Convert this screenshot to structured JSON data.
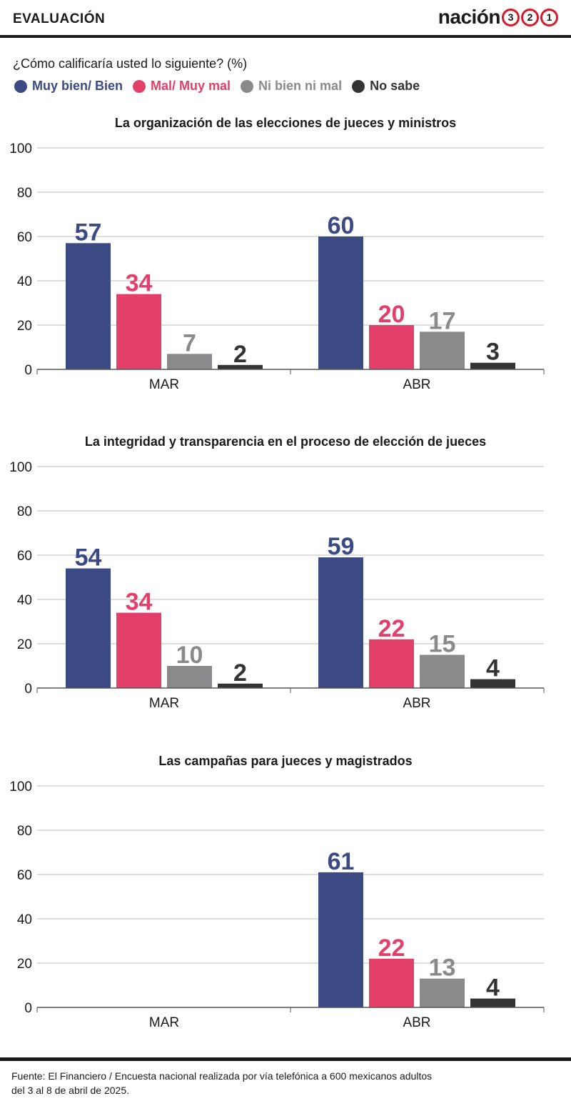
{
  "header": {
    "section": "EVALUACIÓN",
    "brand_word": "nación",
    "brand_digits": [
      "3",
      "2",
      "1"
    ]
  },
  "question": "¿Cómo calificaría usted lo siguiente? (%)",
  "legend": [
    {
      "label": "Muy bien/ Bien",
      "color": "#3b4a83"
    },
    {
      "label": "Mal/ Muy mal",
      "color": "#e2406a"
    },
    {
      "label": "Ni bien ni mal",
      "color": "#8a8a8d"
    },
    {
      "label": "No sabe",
      "color": "#333333"
    }
  ],
  "chart_data": [
    {
      "type": "bar",
      "title": "La organización de las elecciones de jueces y ministros",
      "categories": [
        "MAR",
        "ABR"
      ],
      "series": [
        {
          "name": "Muy bien/ Bien",
          "values": [
            57,
            60
          ]
        },
        {
          "name": "Mal/ Muy mal",
          "values": [
            34,
            20
          ]
        },
        {
          "name": "Ni bien ni mal",
          "values": [
            7,
            17
          ]
        },
        {
          "name": "No sabe",
          "values": [
            2,
            3
          ]
        }
      ],
      "ylim": [
        0,
        100
      ],
      "yticks": [
        0,
        20,
        40,
        60,
        80,
        100
      ],
      "grid": true
    },
    {
      "type": "bar",
      "title": "La integridad y transparencia en el proceso de elección de jueces",
      "categories": [
        "MAR",
        "ABR"
      ],
      "series": [
        {
          "name": "Muy bien/ Bien",
          "values": [
            54,
            59
          ]
        },
        {
          "name": "Mal/ Muy mal",
          "values": [
            34,
            22
          ]
        },
        {
          "name": "Ni bien ni mal",
          "values": [
            10,
            15
          ]
        },
        {
          "name": "No sabe",
          "values": [
            2,
            4
          ]
        }
      ],
      "ylim": [
        0,
        100
      ],
      "yticks": [
        0,
        20,
        40,
        60,
        80,
        100
      ],
      "grid": true
    },
    {
      "type": "bar",
      "title": "Las campañas para jueces y magistrados",
      "categories": [
        "MAR",
        "ABR"
      ],
      "series": [
        {
          "name": "Muy bien/ Bien",
          "values": [
            null,
            61
          ]
        },
        {
          "name": "Mal/ Muy mal",
          "values": [
            null,
            22
          ]
        },
        {
          "name": "Ni bien ni mal",
          "values": [
            null,
            13
          ]
        },
        {
          "name": "No sabe",
          "values": [
            null,
            4
          ]
        }
      ],
      "ylim": [
        0,
        100
      ],
      "yticks": [
        0,
        20,
        40,
        60,
        80,
        100
      ],
      "grid": true
    }
  ],
  "footer": {
    "line1": "Fuente: El Financiero / Encuesta nacional realizada por vía telefónica a 600 mexicanos adultos",
    "line2": "del 3 al 8 de abril de 2025."
  }
}
